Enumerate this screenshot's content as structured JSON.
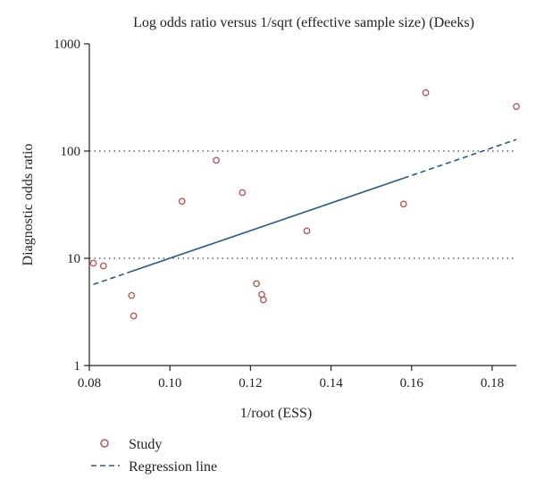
{
  "chart_data": {
    "type": "scatter",
    "title": "Log odds ratio versus 1/sqrt (effective sample size) (Deeks)",
    "xlabel": "1/root (ESS)",
    "ylabel": "Diagnostic odds ratio",
    "x_ticks": [
      "0.08",
      "0.10",
      "0.12",
      "0.14",
      "0.16",
      "0.18"
    ],
    "y_ticks": [
      "1",
      "10",
      "100",
      "1000"
    ],
    "xlim": [
      0.08,
      0.186
    ],
    "ylim": [
      1,
      1000
    ],
    "y_scale": "log",
    "grid": {
      "horizontal_dotted_at": [
        10,
        100
      ]
    },
    "series": [
      {
        "name": "Study",
        "marker": "open-circle",
        "points": [
          {
            "x": 0.081,
            "y": 9.0
          },
          {
            "x": 0.0835,
            "y": 8.5
          },
          {
            "x": 0.0905,
            "y": 4.5
          },
          {
            "x": 0.091,
            "y": 2.9
          },
          {
            "x": 0.103,
            "y": 34
          },
          {
            "x": 0.1115,
            "y": 82
          },
          {
            "x": 0.118,
            "y": 41
          },
          {
            "x": 0.1215,
            "y": 5.8
          },
          {
            "x": 0.1228,
            "y": 4.6
          },
          {
            "x": 0.1232,
            "y": 4.1
          },
          {
            "x": 0.134,
            "y": 18
          },
          {
            "x": 0.158,
            "y": 32
          },
          {
            "x": 0.1635,
            "y": 350
          },
          {
            "x": 0.186,
            "y": 260
          }
        ]
      },
      {
        "name": "Regression line",
        "style": "dashed",
        "start": {
          "x": 0.081,
          "y": 5.7
        },
        "end": {
          "x": 0.186,
          "y": 128
        },
        "solid_segment": [
          0.09,
          0.158
        ]
      }
    ],
    "legend": {
      "placement": "bottom-left",
      "items": [
        {
          "label": "Study",
          "symbol": "open-circle"
        },
        {
          "label": "Regression line",
          "symbol": "dashed-line"
        }
      ]
    },
    "colors": {
      "marker": "#b55a5a",
      "line": "#2b5b82",
      "axis": "#222222",
      "grid": "#444444"
    }
  }
}
